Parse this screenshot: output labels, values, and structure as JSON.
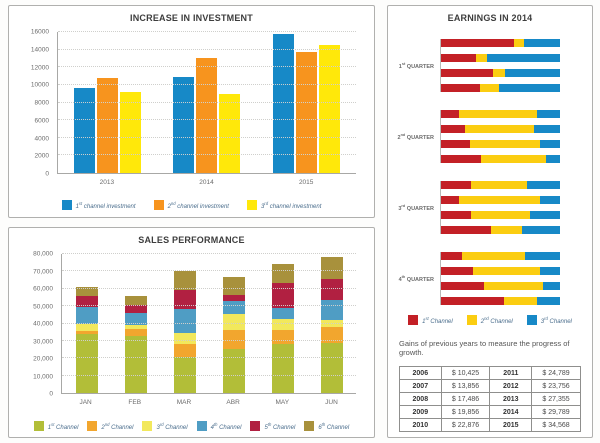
{
  "chart_data": [
    {
      "id": "investment",
      "type": "bar",
      "title": "INCREASE IN INVESTMENT",
      "categories": [
        "2013",
        "2014",
        "2015"
      ],
      "series": [
        {
          "name": "1st channel investment",
          "color": "#1789C7",
          "values": [
            9700,
            10900,
            15800
          ]
        },
        {
          "name": "2nd channel investment",
          "color": "#F7941E",
          "values": [
            10800,
            13000,
            13700
          ]
        },
        {
          "name": "3rd channel investment",
          "color": "#FFE80A",
          "values": [
            9200,
            9000,
            14500
          ]
        }
      ],
      "ylim": [
        0,
        16000
      ],
      "yticks": [
        "0",
        "2000",
        "4000",
        "6000",
        "8000",
        "10000",
        "12000",
        "14000",
        "16000"
      ],
      "grid": "dotted-horizontal",
      "legend_position": "bottom"
    },
    {
      "id": "sales",
      "type": "stacked-bar",
      "title": "SALES PERFORMANCE",
      "categories": [
        "JAN",
        "FEB",
        "MAR",
        "ABR",
        "MAY",
        "JUN"
      ],
      "series": [
        {
          "name": "1st Channel",
          "color": "#B2BE38",
          "values": [
            34000,
            33000,
            21000,
            25500,
            28000,
            28500
          ]
        },
        {
          "name": "2nd Channel",
          "color": "#F2A62E",
          "values": [
            1500,
            4000,
            7000,
            11000,
            8500,
            9500
          ]
        },
        {
          "name": "3rd Channel",
          "color": "#F2E85C",
          "values": [
            4000,
            2000,
            6500,
            9000,
            6000,
            4000
          ]
        },
        {
          "name": "4th Channel",
          "color": "#4F9DC4",
          "values": [
            10000,
            7000,
            14000,
            7500,
            6500,
            11500
          ]
        },
        {
          "name": "5th Channel",
          "color": "#B12041",
          "values": [
            6500,
            4500,
            11000,
            3500,
            14500,
            12000
          ]
        },
        {
          "name": "6th Channel",
          "color": "#A8913C",
          "values": [
            5000,
            5500,
            10500,
            10500,
            10500,
            13000
          ]
        }
      ],
      "ylim": [
        0,
        80000
      ],
      "yticks": [
        "0",
        "10,000",
        "20,000",
        "30,000",
        "40,000",
        "50,000",
        "60,000",
        "70,000",
        "80,000"
      ],
      "grid": "dotted-horizontal",
      "legend_position": "bottom"
    },
    {
      "id": "earnings",
      "type": "stacked-bar-horizontal",
      "title": "EARNINGS IN 2014",
      "unit": "percent-of-bar",
      "series": [
        {
          "name": "1st Channel",
          "color": "#C32026"
        },
        {
          "name": "2nd Channel",
          "color": "#FBCD11"
        },
        {
          "name": "3rd Channel",
          "color": "#1789C7"
        }
      ],
      "groups": [
        {
          "label": "1st QUARTER",
          "bars": [
            [
              61,
              9,
              30
            ],
            [
              29,
              10,
              61
            ],
            [
              44,
              10,
              46
            ],
            [
              33,
              16,
              51
            ]
          ]
        },
        {
          "label": "2nd QUARTER",
          "bars": [
            [
              15,
              66,
              19
            ],
            [
              20,
              58,
              22
            ],
            [
              24,
              59,
              17
            ],
            [
              34,
              54,
              12
            ]
          ]
        },
        {
          "label": "3rd QUARTER",
          "bars": [
            [
              25,
              47,
              28
            ],
            [
              15,
              68,
              17
            ],
            [
              25,
              50,
              25
            ],
            [
              42,
              26,
              32
            ]
          ]
        },
        {
          "label": "4th QUARTER",
          "bars": [
            [
              18,
              53,
              29
            ],
            [
              27,
              56,
              17
            ],
            [
              36,
              50,
              14
            ],
            [
              53,
              28,
              19
            ]
          ]
        }
      ],
      "legend_position": "bottom"
    },
    {
      "id": "gains",
      "type": "table",
      "caption": "Gains of previous years to measure the progress of growth.",
      "rows": [
        [
          "2006",
          "$ 10,425",
          "2011",
          "$ 24,789"
        ],
        [
          "2007",
          "$ 13,856",
          "2012",
          "$ 23,756"
        ],
        [
          "2008",
          "$ 17,486",
          "2013",
          "$ 27,355"
        ],
        [
          "2009",
          "$ 19,856",
          "2014",
          "$ 29,789"
        ],
        [
          "2010",
          "$ 22,876",
          "2015",
          "$ 34,568"
        ]
      ]
    }
  ]
}
